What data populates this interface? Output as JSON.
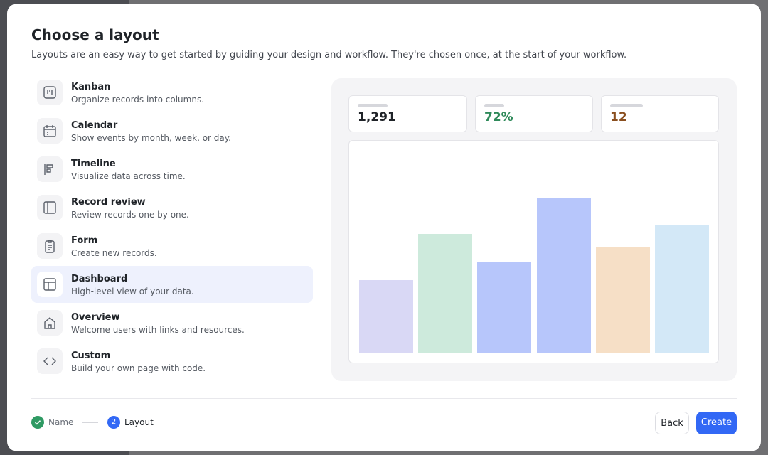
{
  "modal": {
    "title": "Choose a layout",
    "subtitle": "Layouts are an easy way to get started by guiding your design and workflow. They're chosen once, at the start of your workflow.",
    "layouts": [
      {
        "name": "Kanban",
        "description": "Organize records into columns."
      },
      {
        "name": "Calendar",
        "description": "Show events by month, week, or day."
      },
      {
        "name": "Timeline",
        "description": "Visualize data across time."
      },
      {
        "name": "Record review",
        "description": "Review records one by one."
      },
      {
        "name": "Form",
        "description": "Create new records."
      },
      {
        "name": "Dashboard",
        "description": "High-level view of your data."
      },
      {
        "name": "Overview",
        "description": "Welcome users with links and resources."
      },
      {
        "name": "Custom",
        "description": "Build your own page with code."
      }
    ],
    "preview": {
      "stats": [
        "1,291",
        "72%",
        "12"
      ]
    },
    "steps": [
      {
        "label": "Name"
      },
      {
        "number": "2",
        "label": "Layout"
      }
    ],
    "buttons": {
      "back": "Back",
      "create": "Create"
    }
  }
}
